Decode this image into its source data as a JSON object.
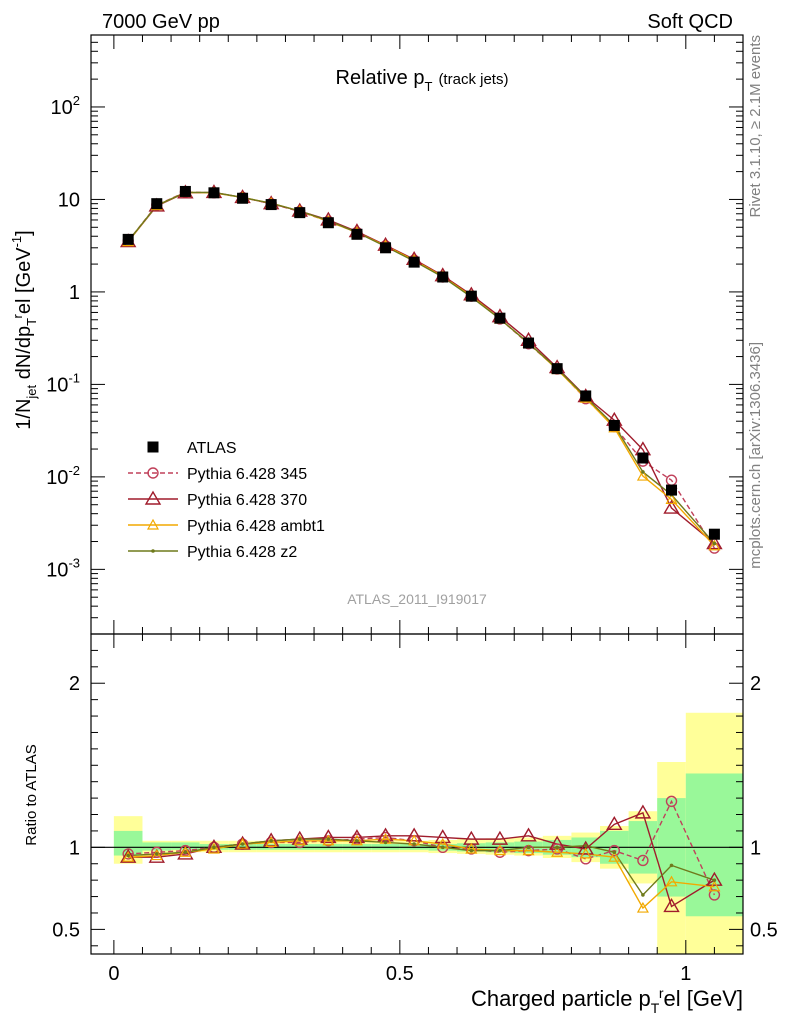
{
  "header": {
    "left": "7000 GeV pp",
    "right": "Soft QCD"
  },
  "side_text": {
    "rivet": "Rivet 3.1.10, ≥ 2.1M events",
    "mcplots": "mcplots.cern.ch [arXiv:1306.3436]"
  },
  "analysis_id": "ATLAS_2011_I919017",
  "colors": {
    "atlas": "#000000",
    "p345": "#c0405a",
    "p370": "#a01c2c",
    "ambt1": "#f2a900",
    "z2": "#6f7a1c",
    "band_inner": "#99f899",
    "band_outer": "#ffff99"
  },
  "chart_data": [
    {
      "type": "line",
      "title_main": "Relative p",
      "title_sub": "T",
      "title_extra": "(track jets)",
      "ylabel": "1/N_jet dN/dp_T^rel [GeV^-1]",
      "xlim": [
        -0.04,
        1.1
      ],
      "ylim": [
        0.0002,
        600
      ],
      "yscale": "log",
      "y_tick_labels": [
        "10^-3",
        "10^-2",
        "10^-1",
        "1",
        "10",
        "10^2"
      ],
      "x": [
        0.025,
        0.075,
        0.125,
        0.175,
        0.225,
        0.275,
        0.325,
        0.375,
        0.425,
        0.475,
        0.525,
        0.575,
        0.625,
        0.675,
        0.725,
        0.775,
        0.825,
        0.875,
        0.925,
        0.975,
        1.05
      ],
      "series": [
        {
          "name": "ATLAS",
          "key": "atlas",
          "values": [
            3.7,
            9.0,
            12.2,
            11.8,
            10.3,
            8.8,
            7.2,
            5.6,
            4.2,
            3.0,
            2.1,
            1.45,
            0.9,
            0.52,
            0.28,
            0.148,
            0.075,
            0.036,
            0.016,
            0.0072,
            0.0024
          ]
        },
        {
          "name": "Pythia 6.428 345",
          "key": "p345",
          "values": [
            3.55,
            8.7,
            12.0,
            11.8,
            10.5,
            9.0,
            7.4,
            5.8,
            4.4,
            3.15,
            2.2,
            1.45,
            0.9,
            0.51,
            0.275,
            0.147,
            0.07,
            0.035,
            0.0148,
            0.0092,
            0.0017
          ]
        },
        {
          "name": "Pythia 6.428 370",
          "key": "p370",
          "values": [
            3.5,
            8.5,
            11.8,
            11.9,
            10.5,
            9.0,
            7.5,
            6.0,
            4.5,
            3.2,
            2.25,
            1.5,
            0.93,
            0.54,
            0.3,
            0.152,
            0.074,
            0.041,
            0.0197,
            0.0046,
            0.0019
          ]
        },
        {
          "name": "Pythia 6.428 ambt1",
          "key": "ambt1",
          "values": [
            3.5,
            8.6,
            11.9,
            11.8,
            10.5,
            9.1,
            7.5,
            5.8,
            4.4,
            3.15,
            2.2,
            1.47,
            0.9,
            0.51,
            0.28,
            0.145,
            0.071,
            0.034,
            0.0102,
            0.0057,
            0.0018
          ]
        },
        {
          "name": "Pythia 6.428 z2",
          "key": "z2",
          "values": [
            3.55,
            8.6,
            11.9,
            11.9,
            10.5,
            9.1,
            7.5,
            5.9,
            4.4,
            3.1,
            2.15,
            1.45,
            0.88,
            0.51,
            0.28,
            0.148,
            0.073,
            0.036,
            0.0113,
            0.0064,
            0.0019
          ]
        }
      ]
    },
    {
      "type": "line",
      "xlabel": "Charged particle p_T^rel [GeV]",
      "ylabel": "Ratio to ATLAS",
      "xlim": [
        -0.04,
        1.1
      ],
      "ylim": [
        0.35,
        2.3
      ],
      "x_tick_labels": [
        "0",
        "0.5",
        "1"
      ],
      "y_tick_labels": [
        "0.5",
        "1",
        "2"
      ],
      "bands": {
        "edges": [
          0.0,
          0.05,
          0.1,
          0.15,
          0.2,
          0.25,
          0.3,
          0.35,
          0.4,
          0.45,
          0.5,
          0.55,
          0.6,
          0.65,
          0.7,
          0.75,
          0.8,
          0.85,
          0.9,
          0.95,
          1.0,
          1.1
        ],
        "inner_lo": [
          0.95,
          0.98,
          0.985,
          0.985,
          0.985,
          0.985,
          0.985,
          0.985,
          0.985,
          0.985,
          0.985,
          0.98,
          0.975,
          0.97,
          0.965,
          0.955,
          0.94,
          0.9,
          0.84,
          0.7,
          0.58
        ],
        "inner_hi": [
          1.1,
          1.03,
          1.03,
          1.02,
          1.02,
          1.02,
          1.02,
          1.02,
          1.02,
          1.02,
          1.02,
          1.02,
          1.025,
          1.03,
          1.035,
          1.045,
          1.06,
          1.1,
          1.16,
          1.3,
          1.45
        ],
        "outer_lo": [
          0.9,
          0.96,
          0.97,
          0.97,
          0.97,
          0.97,
          0.97,
          0.97,
          0.97,
          0.97,
          0.97,
          0.965,
          0.96,
          0.955,
          0.95,
          0.935,
          0.91,
          0.87,
          0.78,
          0.35,
          0.35
        ],
        "outer_hi": [
          1.19,
          1.04,
          1.04,
          1.04,
          1.04,
          1.04,
          1.04,
          1.04,
          1.04,
          1.04,
          1.04,
          1.045,
          1.05,
          1.055,
          1.06,
          1.07,
          1.09,
          1.13,
          1.22,
          1.52,
          1.82
        ]
      },
      "series": [
        {
          "name": "Pythia 6.428 345",
          "key": "p345",
          "values": [
            0.96,
            0.97,
            0.98,
            1.0,
            1.02,
            1.03,
            1.03,
            1.04,
            1.05,
            1.06,
            1.04,
            1.0,
            0.99,
            0.97,
            0.98,
            0.99,
            0.93,
            0.98,
            0.92,
            1.28,
            0.71
          ]
        },
        {
          "name": "Pythia 6.428 370",
          "key": "p370",
          "values": [
            0.94,
            0.94,
            0.96,
            1.0,
            1.02,
            1.04,
            1.05,
            1.06,
            1.06,
            1.07,
            1.07,
            1.06,
            1.05,
            1.05,
            1.07,
            1.02,
            0.99,
            1.14,
            1.21,
            0.64,
            0.8
          ]
        },
        {
          "name": "Pythia 6.428 ambt1",
          "key": "ambt1",
          "values": [
            0.94,
            0.95,
            0.97,
            0.99,
            1.02,
            1.03,
            1.04,
            1.04,
            1.04,
            1.05,
            1.04,
            1.02,
            0.99,
            0.98,
            0.98,
            0.97,
            0.96,
            0.94,
            0.63,
            0.79,
            0.76
          ]
        },
        {
          "name": "Pythia 6.428 z2",
          "key": "z2",
          "values": [
            0.95,
            0.96,
            0.97,
            1.0,
            1.02,
            1.04,
            1.05,
            1.05,
            1.04,
            1.03,
            1.02,
            1.0,
            0.98,
            0.98,
            1.0,
            1.0,
            1.01,
            0.97,
            0.71,
            0.89,
            0.8
          ]
        }
      ]
    }
  ]
}
